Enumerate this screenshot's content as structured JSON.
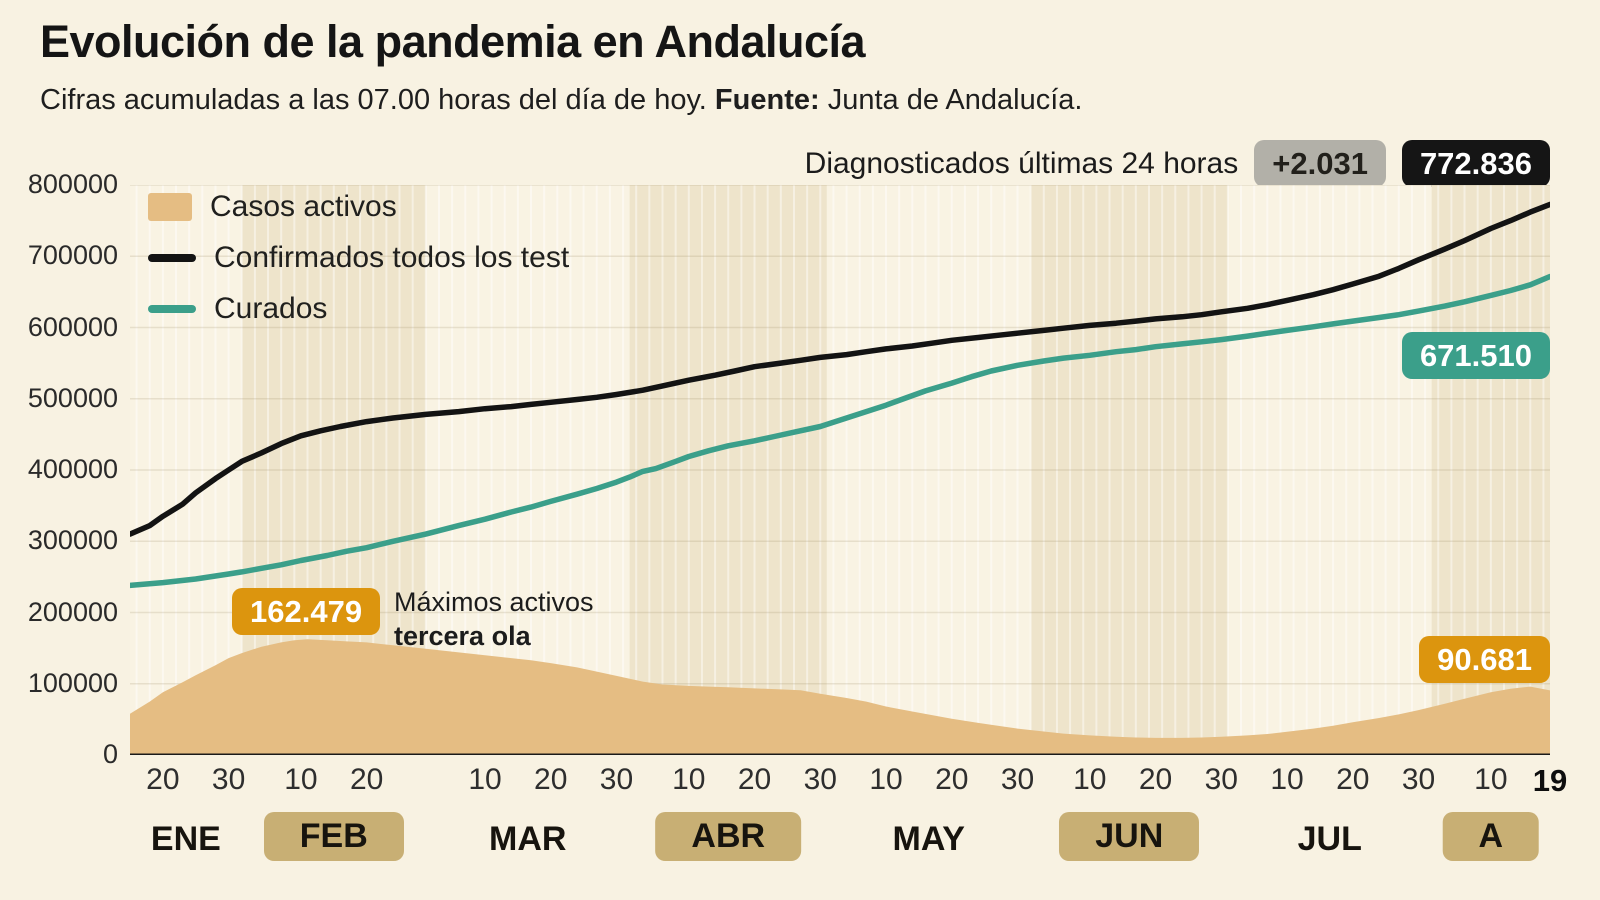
{
  "header": {
    "title": "Evolución de la pandemia en Andalucía",
    "subtitle_regular": "Cifras acumuladas a las 07.00 horas del día de hoy. ",
    "subtitle_bold": "Fuente:",
    "subtitle_after": " Junta de Andalucía."
  },
  "annotations": {
    "diagnosed_label": "Diagnosticados últimas 24 horas",
    "diagnosed_delta": "+2.031",
    "diagnosed_total": "772.836",
    "cured_total": "671.510",
    "active_total": "90.681",
    "max_active_value": "162.479",
    "max_active_line1": "Máximos activos",
    "max_active_line2": "tercera ola"
  },
  "legend": [
    {
      "label": "Casos activos",
      "type": "area",
      "color": "#e5bd83"
    },
    {
      "label": "Confirmados todos los test",
      "type": "line",
      "color": "#131313"
    },
    {
      "label": "Curados",
      "type": "line",
      "color": "#3b9f8a"
    }
  ],
  "colors": {
    "page_bg": "#f8f2e2",
    "band_light": "#f9f3e3",
    "band_dark": "#eee4cb",
    "month_pill": "#c8af74",
    "area_fill": "#e5bd83",
    "confirmed_line": "#131313",
    "cured_line": "#3b9f8a",
    "orange_badge": "#dc950e",
    "gray_badge": "#b2b0a8",
    "black_badge": "#151515"
  },
  "chart_data": {
    "type": "area+line",
    "x_unit": "day offset from mid-January",
    "total_days": 216,
    "ylim": [
      0,
      800000
    ],
    "y_ticks": [
      0,
      100000,
      200000,
      300000,
      400000,
      500000,
      600000,
      700000,
      800000
    ],
    "months": [
      {
        "label": "ENE",
        "start": 0,
        "end": 17,
        "pill": false
      },
      {
        "label": "FEB",
        "start": 17,
        "end": 45,
        "pill": true
      },
      {
        "label": "MAR",
        "start": 45,
        "end": 76,
        "pill": false
      },
      {
        "label": "ABR",
        "start": 76,
        "end": 106,
        "pill": true
      },
      {
        "label": "MAY",
        "start": 106,
        "end": 137,
        "pill": false
      },
      {
        "label": "JUN",
        "start": 137,
        "end": 167,
        "pill": true
      },
      {
        "label": "JUL",
        "start": 167,
        "end": 198,
        "pill": false
      },
      {
        "label": "A",
        "start": 198,
        "end": 216,
        "pill": true
      }
    ],
    "x_ticks": [
      {
        "day": 5,
        "label": "20",
        "bold": false
      },
      {
        "day": 15,
        "label": "30",
        "bold": false
      },
      {
        "day": 26,
        "label": "10",
        "bold": false
      },
      {
        "day": 36,
        "label": "20",
        "bold": false
      },
      {
        "day": 54,
        "label": "10",
        "bold": false
      },
      {
        "day": 64,
        "label": "20",
        "bold": false
      },
      {
        "day": 74,
        "label": "30",
        "bold": false
      },
      {
        "day": 85,
        "label": "10",
        "bold": false
      },
      {
        "day": 95,
        "label": "20",
        "bold": false
      },
      {
        "day": 105,
        "label": "30",
        "bold": false
      },
      {
        "day": 115,
        "label": "10",
        "bold": false
      },
      {
        "day": 125,
        "label": "20",
        "bold": false
      },
      {
        "day": 135,
        "label": "30",
        "bold": false
      },
      {
        "day": 146,
        "label": "10",
        "bold": false
      },
      {
        "day": 156,
        "label": "20",
        "bold": false
      },
      {
        "day": 166,
        "label": "30",
        "bold": false
      },
      {
        "day": 176,
        "label": "10",
        "bold": false
      },
      {
        "day": 186,
        "label": "20",
        "bold": false
      },
      {
        "day": 196,
        "label": "30",
        "bold": false
      },
      {
        "day": 207,
        "label": "10",
        "bold": false
      },
      {
        "day": 216,
        "label": "19",
        "bold": true
      }
    ],
    "series": [
      {
        "name": "Casos activos",
        "type": "area",
        "color": "#e5bd83",
        "final_value": 90681,
        "peak_value": 162479,
        "points": [
          [
            0,
            58000
          ],
          [
            3,
            75000
          ],
          [
            5,
            88000
          ],
          [
            8,
            102000
          ],
          [
            10,
            112000
          ],
          [
            13,
            126000
          ],
          [
            15,
            136000
          ],
          [
            17,
            143000
          ],
          [
            20,
            152000
          ],
          [
            23,
            158000
          ],
          [
            25,
            161000
          ],
          [
            27,
            162479
          ],
          [
            30,
            161000
          ],
          [
            33,
            159500
          ],
          [
            36,
            158000
          ],
          [
            40,
            154000
          ],
          [
            45,
            149000
          ],
          [
            50,
            144000
          ],
          [
            54,
            140000
          ],
          [
            58,
            136000
          ],
          [
            61,
            133000
          ],
          [
            64,
            129000
          ],
          [
            68,
            123000
          ],
          [
            71,
            117000
          ],
          [
            74,
            111000
          ],
          [
            78,
            103000
          ],
          [
            81,
            99000
          ],
          [
            85,
            97000
          ],
          [
            88,
            96000
          ],
          [
            91,
            95000
          ],
          [
            95,
            93500
          ],
          [
            99,
            92000
          ],
          [
            102,
            91000
          ],
          [
            105,
            86000
          ],
          [
            109,
            80000
          ],
          [
            112,
            75000
          ],
          [
            115,
            68000
          ],
          [
            119,
            61000
          ],
          [
            122,
            56000
          ],
          [
            125,
            51000
          ],
          [
            129,
            45000
          ],
          [
            132,
            41000
          ],
          [
            135,
            37000
          ],
          [
            139,
            33000
          ],
          [
            142,
            30000
          ],
          [
            146,
            27500
          ],
          [
            150,
            25500
          ],
          [
            153,
            24500
          ],
          [
            156,
            24000
          ],
          [
            160,
            24000
          ],
          [
            163,
            24500
          ],
          [
            166,
            25500
          ],
          [
            170,
            27500
          ],
          [
            173,
            29500
          ],
          [
            176,
            32500
          ],
          [
            180,
            37000
          ],
          [
            183,
            41000
          ],
          [
            186,
            46000
          ],
          [
            190,
            52000
          ],
          [
            193,
            57000
          ],
          [
            196,
            63000
          ],
          [
            200,
            72000
          ],
          [
            203,
            79000
          ],
          [
            207,
            88000
          ],
          [
            210,
            93000
          ],
          [
            213,
            96000
          ],
          [
            216,
            90681
          ]
        ]
      },
      {
        "name": "Curados",
        "type": "line",
        "color": "#3b9f8a",
        "final_value": 671510,
        "points": [
          [
            0,
            238000
          ],
          [
            5,
            242000
          ],
          [
            10,
            247000
          ],
          [
            15,
            254000
          ],
          [
            17,
            257000
          ],
          [
            20,
            262000
          ],
          [
            23,
            267000
          ],
          [
            26,
            273000
          ],
          [
            30,
            280000
          ],
          [
            33,
            286000
          ],
          [
            36,
            291000
          ],
          [
            40,
            300000
          ],
          [
            45,
            310000
          ],
          [
            50,
            322000
          ],
          [
            54,
            331000
          ],
          [
            58,
            341000
          ],
          [
            61,
            348000
          ],
          [
            64,
            356000
          ],
          [
            68,
            366000
          ],
          [
            71,
            374000
          ],
          [
            74,
            383000
          ],
          [
            76,
            390000
          ],
          [
            78,
            398000
          ],
          [
            80,
            402000
          ],
          [
            83,
            412000
          ],
          [
            85,
            419000
          ],
          [
            88,
            427000
          ],
          [
            91,
            434000
          ],
          [
            95,
            441000
          ],
          [
            98,
            447000
          ],
          [
            101,
            453000
          ],
          [
            105,
            461000
          ],
          [
            108,
            470000
          ],
          [
            111,
            479000
          ],
          [
            115,
            491000
          ],
          [
            118,
            501000
          ],
          [
            121,
            511000
          ],
          [
            125,
            522000
          ],
          [
            128,
            531000
          ],
          [
            131,
            539000
          ],
          [
            135,
            547000
          ],
          [
            139,
            553000
          ],
          [
            142,
            557000
          ],
          [
            146,
            561000
          ],
          [
            150,
            566000
          ],
          [
            153,
            569000
          ],
          [
            156,
            573000
          ],
          [
            160,
            577000
          ],
          [
            163,
            580000
          ],
          [
            166,
            583000
          ],
          [
            170,
            588000
          ],
          [
            173,
            592000
          ],
          [
            176,
            596000
          ],
          [
            180,
            601000
          ],
          [
            183,
            605000
          ],
          [
            186,
            609000
          ],
          [
            190,
            614000
          ],
          [
            193,
            618000
          ],
          [
            196,
            623000
          ],
          [
            200,
            630000
          ],
          [
            203,
            636000
          ],
          [
            207,
            645000
          ],
          [
            210,
            652000
          ],
          [
            213,
            660000
          ],
          [
            216,
            671510
          ]
        ]
      },
      {
        "name": "Confirmados todos los test",
        "type": "line",
        "color": "#131313",
        "final_value": 772836,
        "points": [
          [
            0,
            310000
          ],
          [
            3,
            322000
          ],
          [
            5,
            335000
          ],
          [
            8,
            352000
          ],
          [
            10,
            368000
          ],
          [
            13,
            388000
          ],
          [
            15,
            400000
          ],
          [
            17,
            412000
          ],
          [
            20,
            424000
          ],
          [
            23,
            437000
          ],
          [
            26,
            448000
          ],
          [
            29,
            455000
          ],
          [
            32,
            461000
          ],
          [
            36,
            468000
          ],
          [
            40,
            473000
          ],
          [
            45,
            478000
          ],
          [
            50,
            482000
          ],
          [
            54,
            486000
          ],
          [
            58,
            489000
          ],
          [
            61,
            492000
          ],
          [
            64,
            495000
          ],
          [
            68,
            499000
          ],
          [
            71,
            502000
          ],
          [
            74,
            506000
          ],
          [
            78,
            512000
          ],
          [
            81,
            518000
          ],
          [
            85,
            526000
          ],
          [
            89,
            533000
          ],
          [
            92,
            539000
          ],
          [
            95,
            545000
          ],
          [
            99,
            550000
          ],
          [
            102,
            554000
          ],
          [
            105,
            558000
          ],
          [
            109,
            562000
          ],
          [
            112,
            566000
          ],
          [
            115,
            570000
          ],
          [
            119,
            574000
          ],
          [
            122,
            578000
          ],
          [
            125,
            582000
          ],
          [
            129,
            586000
          ],
          [
            132,
            589000
          ],
          [
            135,
            592000
          ],
          [
            139,
            596000
          ],
          [
            142,
            599000
          ],
          [
            146,
            603000
          ],
          [
            150,
            606000
          ],
          [
            153,
            609000
          ],
          [
            156,
            612000
          ],
          [
            160,
            615000
          ],
          [
            163,
            618000
          ],
          [
            166,
            622000
          ],
          [
            170,
            627000
          ],
          [
            173,
            632000
          ],
          [
            176,
            638000
          ],
          [
            180,
            646000
          ],
          [
            183,
            653000
          ],
          [
            186,
            661000
          ],
          [
            190,
            672000
          ],
          [
            193,
            683000
          ],
          [
            196,
            695000
          ],
          [
            200,
            710000
          ],
          [
            203,
            722000
          ],
          [
            207,
            739000
          ],
          [
            210,
            750000
          ],
          [
            213,
            762000
          ],
          [
            216,
            772836
          ]
        ]
      }
    ]
  }
}
